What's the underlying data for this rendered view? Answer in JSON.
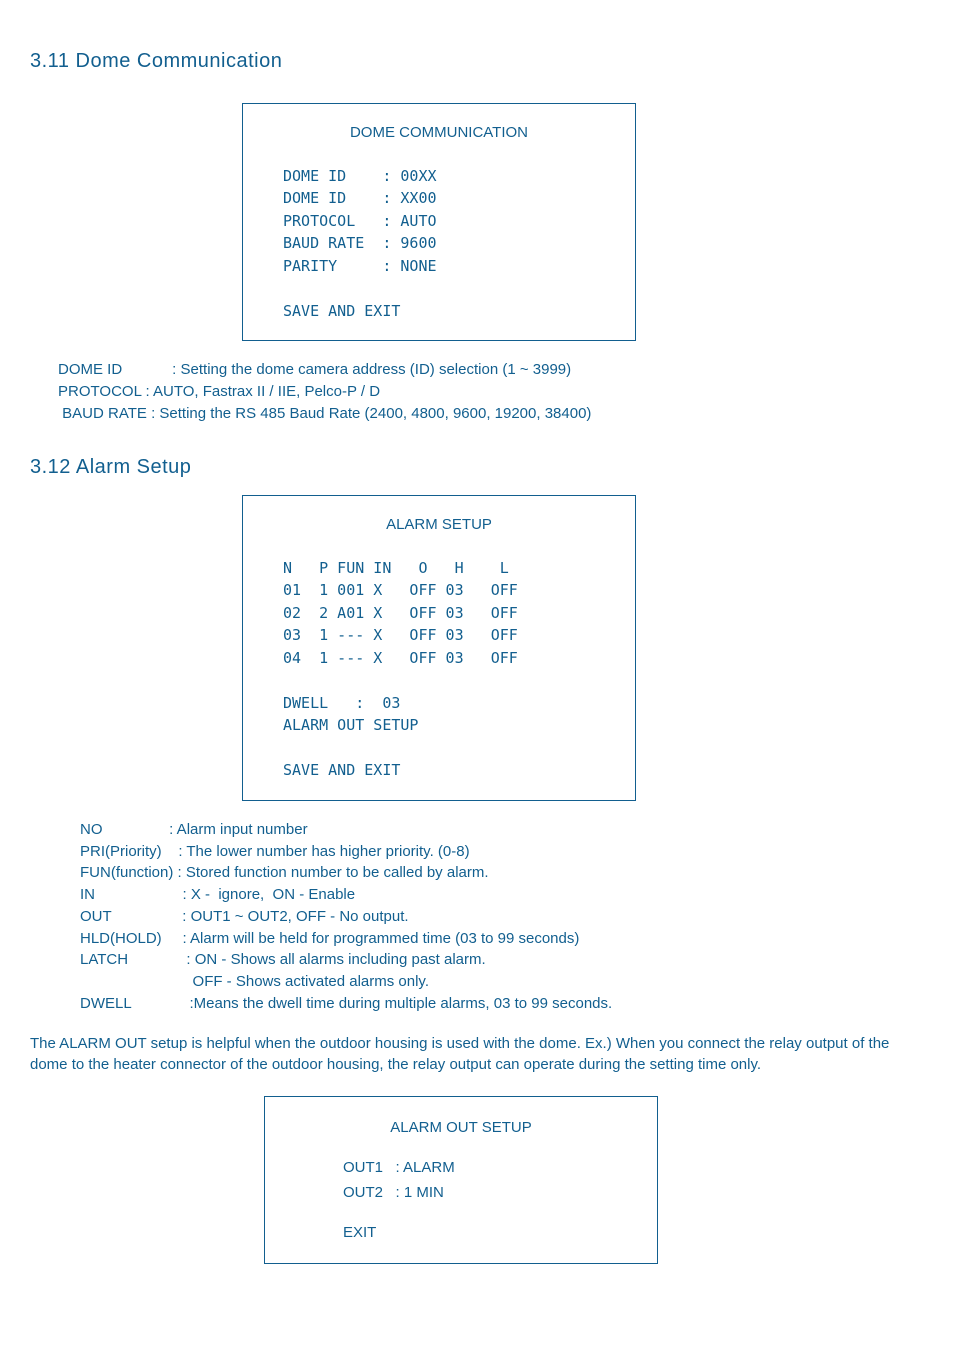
{
  "section311": {
    "title": "3.11 Dome Communication",
    "box": {
      "title": "DOME COMMUNICATION",
      "lines": "DOME ID    : 00XX \nDOME ID    : XX00 \nPROTOCOL   : AUTO \nBAUD RATE  : 9600 \nPARITY     : NONE\n\nSAVE AND EXIT"
    },
    "desc": "DOME ID            : Setting the dome camera address (ID) selection (1 ~ 3999)\nPROTOCOL : AUTO, Fastrax II / IIE, Pelco-P / D\n BAUD RATE : Setting the RS 485 Baud Rate (2400, 4800, 9600, 19200, 38400)"
  },
  "section312": {
    "title": "3.12 Alarm Setup",
    "box": {
      "title": "ALARM SETUP",
      "lines": "N   P FUN IN   O   H    L\n01  1 001 X   OFF 03   OFF\n02  2 A01 X   OFF 03   OFF\n03  1 --- X   OFF 03   OFF\n04  1 --- X   OFF 03   OFF\n\nDWELL   :  03\nALARM OUT SETUP\n\nSAVE AND EXIT"
    },
    "definitions": "NO                : Alarm input number\nPRI(Priority)    : The lower number has higher priority. (0-8)\nFUN(function) : Stored function number to be called by alarm.\nIN                     : X -  ignore,  ON - Enable\nOUT                 : OUT1 ~ OUT2, OFF - No output.\nHLD(HOLD)     : Alarm will be held for programmed time (03 to 99 seconds)\nLATCH              : ON - Shows all alarms including past alarm.\n                           OFF - Shows activated alarms only.\nDWELL              :Means the dwell time during multiple alarms, 03 to 99 seconds.",
    "footer": "The ALARM OUT setup is helpful when the outdoor housing is used with the dome.\nEx.) When you connect the relay output of the dome to the heater connector of the outdoor housing, the relay output can operate during the setting time only.",
    "outbox": {
      "title": "ALARM OUT SETUP",
      "lines": "OUT1   : ALARM\nOUT2   : 1 MIN",
      "exit": "EXIT"
    }
  },
  "colors": {
    "text": "#125f8f",
    "background": "#ffffff",
    "border": "#125f8f"
  }
}
